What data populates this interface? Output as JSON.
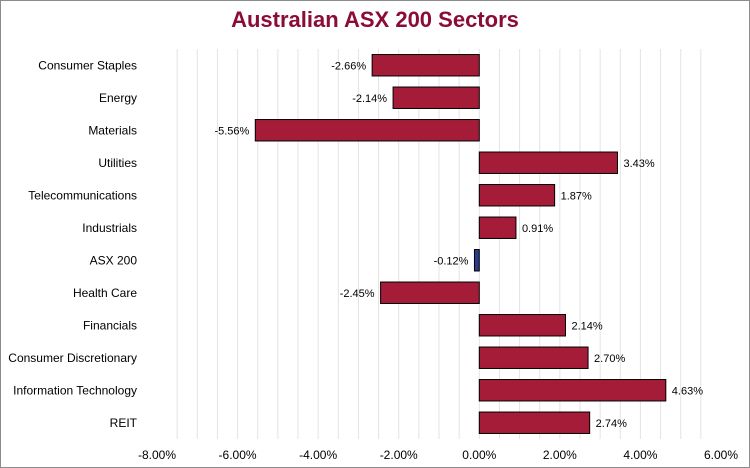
{
  "colors": {
    "title": "#8b0d35",
    "bar": "#a51c38",
    "highlight_bar": "#283c8c",
    "bar_outline": "#000000",
    "gridline": "#e3e3e3",
    "text": "#000000"
  },
  "chart_data": {
    "type": "bar",
    "orientation": "horizontal",
    "title": "Australian ASX 200 Sectors",
    "xlabel": "",
    "ylabel": "",
    "xlim": [
      -8,
      6
    ],
    "x_ticks": [
      -8,
      -6,
      -4,
      -2,
      0,
      2,
      4,
      6
    ],
    "x_tick_labels": [
      "-8.00%",
      "-6.00%",
      "-4.00%",
      "-2.00%",
      "0.00%",
      "2.00%",
      "4.00%",
      "6.00%"
    ],
    "grid": "vertical minor gridlines",
    "legend": "none",
    "categories": [
      "Consumer Staples",
      "Energy",
      "Materials",
      "Utilities",
      "Telecommunications",
      "Industrials",
      "ASX 200",
      "Health Care",
      "Financials",
      "Consumer Discretionary",
      "Information Technology",
      "REIT"
    ],
    "values": [
      -2.66,
      -2.14,
      -5.56,
      3.43,
      1.87,
      0.91,
      -0.12,
      -2.45,
      2.14,
      2.7,
      4.63,
      2.74
    ],
    "data_labels": [
      "-2.66%",
      "-2.14%",
      "-5.56%",
      "3.43%",
      "1.87%",
      "0.91%",
      "-0.12%",
      "-2.45%",
      "2.14%",
      "2.70%",
      "4.63%",
      "2.74%"
    ],
    "highlighted_category": "ASX 200"
  }
}
